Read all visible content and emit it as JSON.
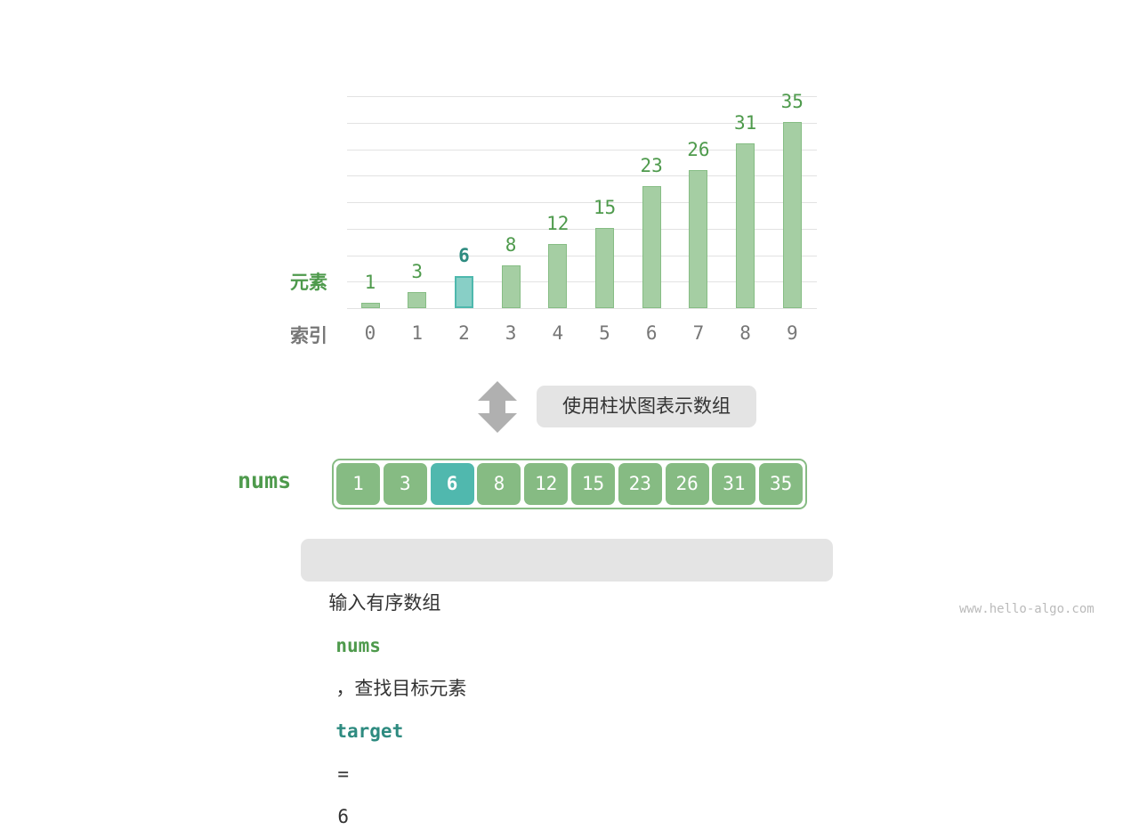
{
  "chart": {
    "row_label_value": "元素",
    "row_label_index": "索引",
    "values": [
      1,
      3,
      6,
      8,
      12,
      15,
      23,
      26,
      31,
      35
    ],
    "indices": [
      "0",
      "1",
      "2",
      "3",
      "4",
      "5",
      "6",
      "7",
      "8",
      "9"
    ],
    "highlight_index": 2
  },
  "transform_label": "使用柱状图表示数组",
  "array": {
    "name": "nums",
    "cells": [
      "1",
      "3",
      "6",
      "8",
      "12",
      "15",
      "23",
      "26",
      "31",
      "35"
    ],
    "highlight_index": 2
  },
  "caption": {
    "prefix": "输入有序数组",
    "array_name": "nums",
    "middle": "，查找目标元素",
    "target_name": "target",
    "equals": "=",
    "target_value": "6"
  },
  "watermark": "www.hello-algo.com",
  "colors": {
    "bar": "#a5cea3",
    "highlight": "#50b8ae",
    "green_text": "#4e9a4c",
    "teal_text": "#2e8b80"
  }
}
